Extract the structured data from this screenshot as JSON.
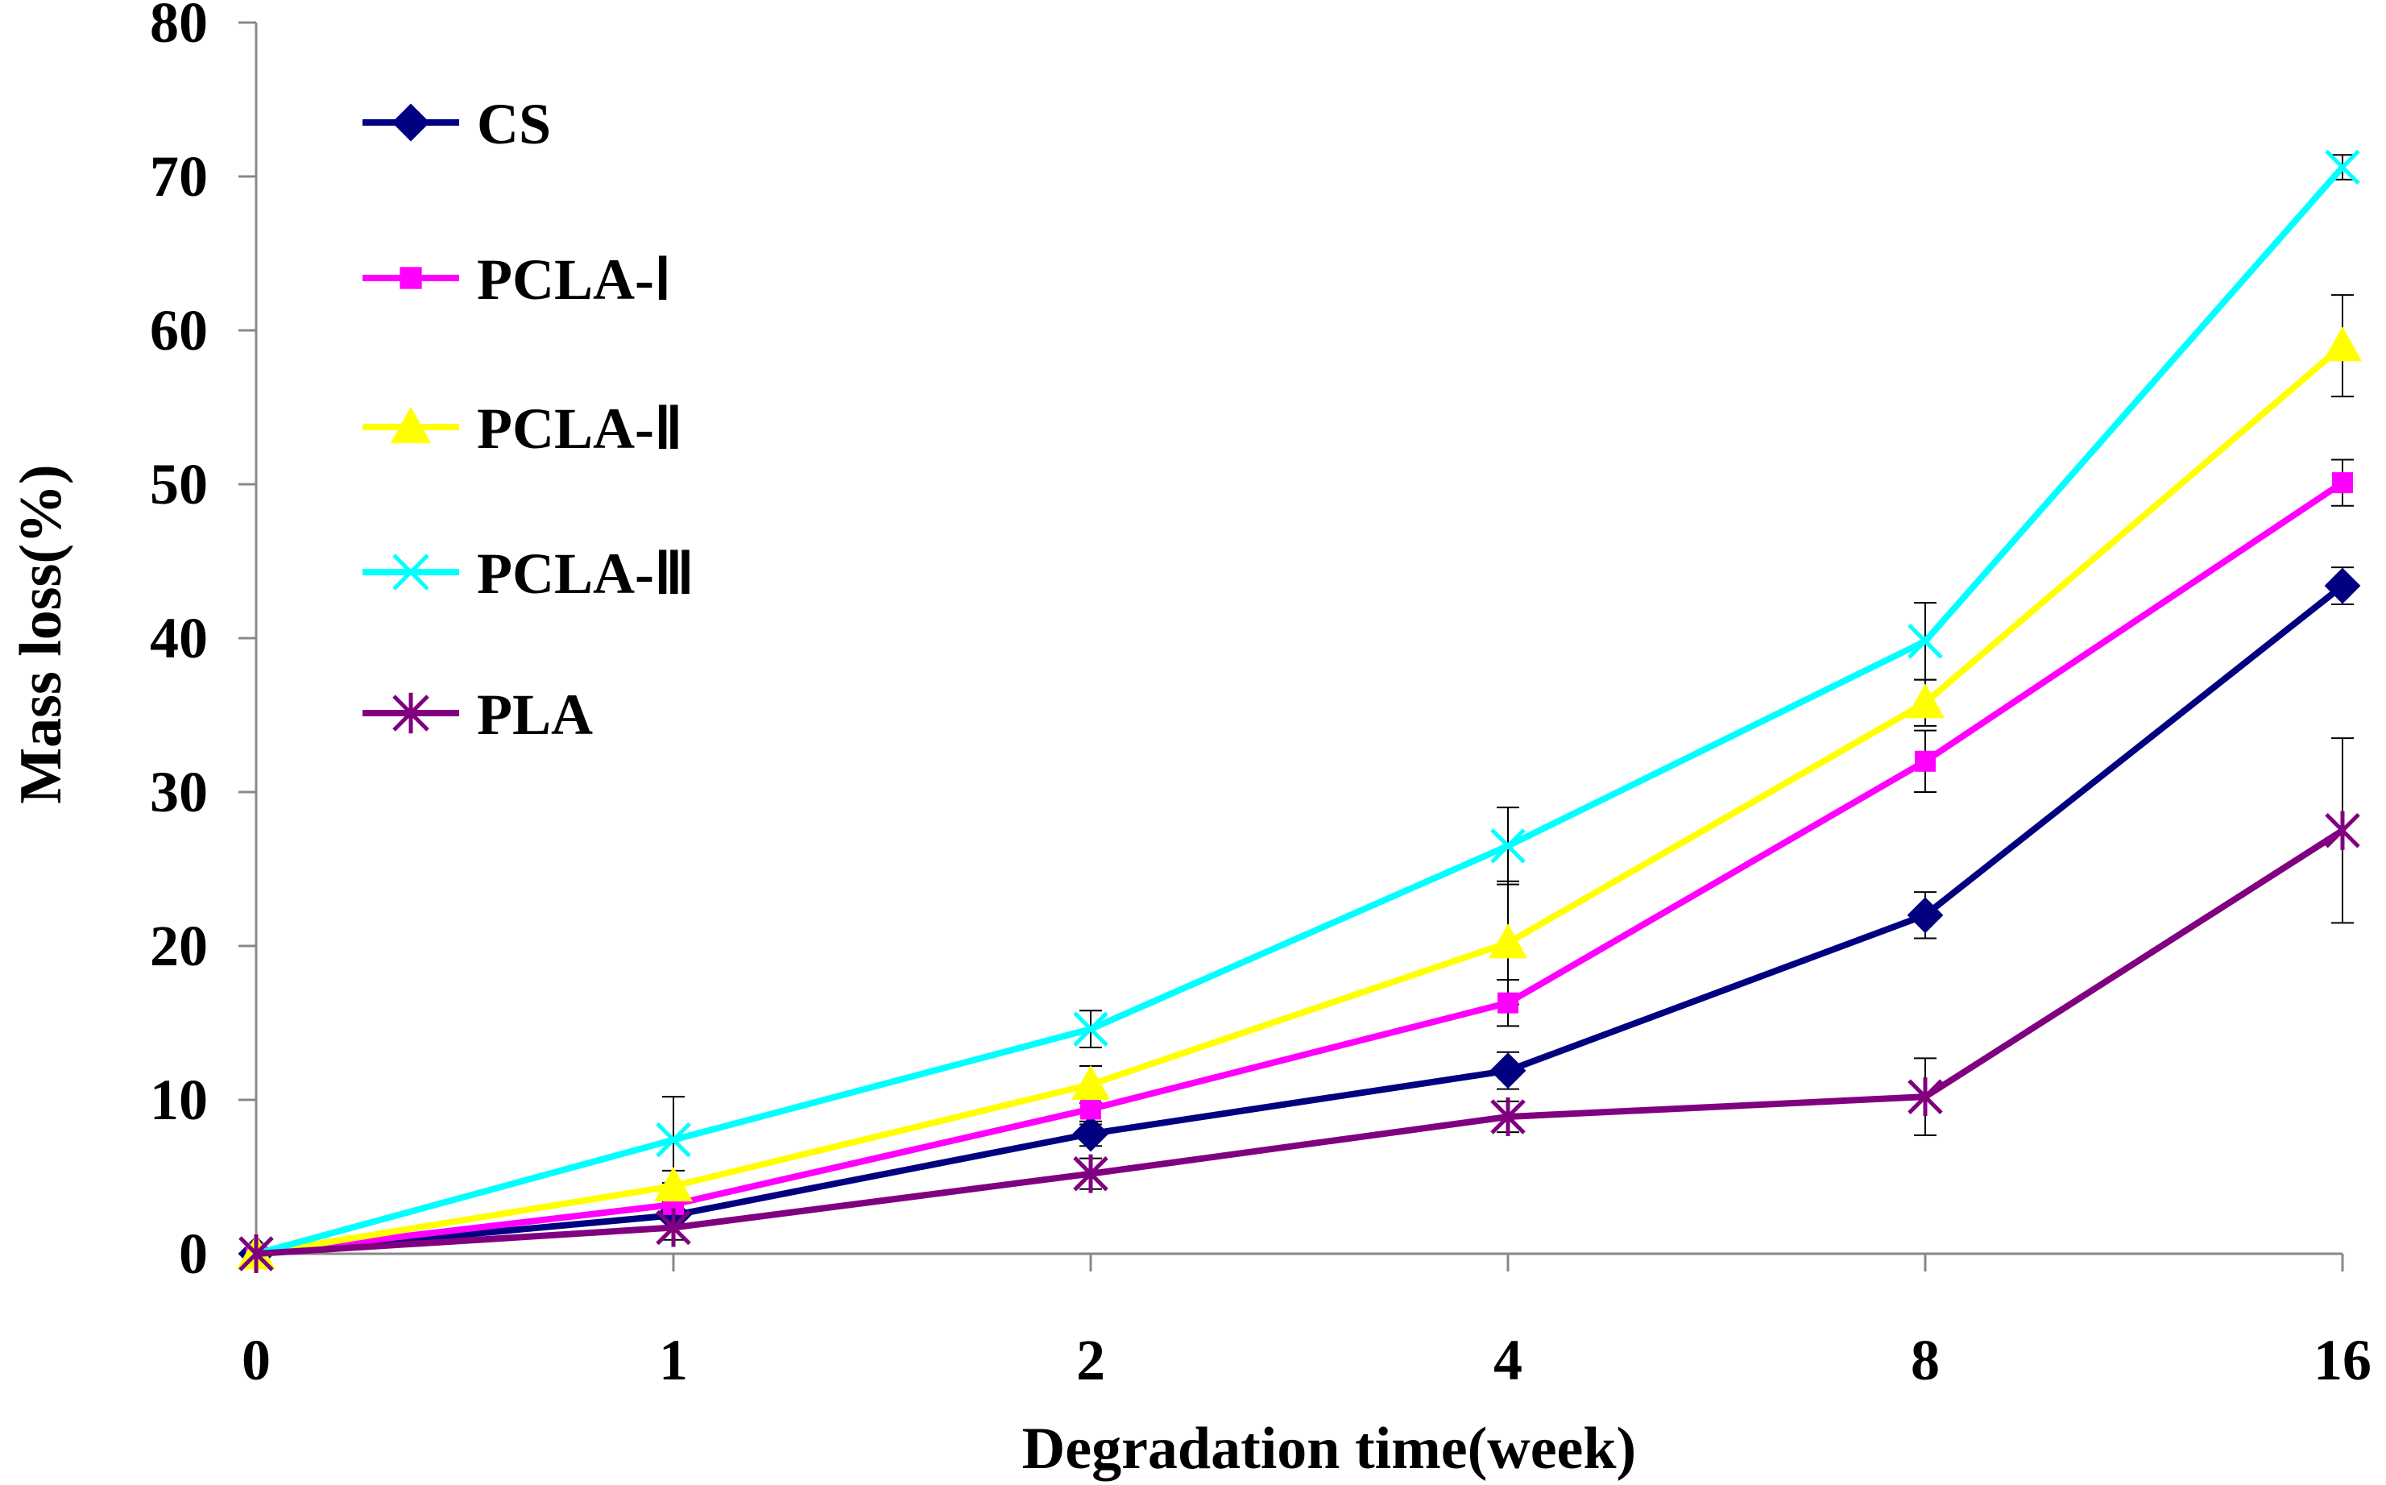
{
  "chart_data": {
    "type": "line",
    "title": "",
    "xlabel": "Degradation time(week)",
    "ylabel": "Mass loss(%)",
    "x": [
      "0",
      "1",
      "2",
      "4",
      "8",
      "16"
    ],
    "ylim": [
      0,
      80
    ],
    "yticks": [
      "0",
      "10",
      "20",
      "30",
      "40",
      "50",
      "60",
      "70",
      "80"
    ],
    "grid": false,
    "legend_position": "top-left",
    "series": [
      {
        "name": "CS",
        "color": "#000080",
        "marker": "diamond",
        "values": [
          0,
          2.5,
          7.8,
          11.9,
          22.0,
          43.4
        ],
        "errors": [
          0,
          0.8,
          0.8,
          1.2,
          1.5,
          1.2
        ]
      },
      {
        "name": "PCLA-Ⅰ",
        "color": "#ff00ff",
        "marker": "square",
        "values": [
          0,
          3.2,
          9.4,
          16.3,
          32.0,
          50.1
        ],
        "errors": [
          0,
          0.8,
          1.0,
          1.5,
          2.0,
          1.5
        ]
      },
      {
        "name": "PCLA-Ⅱ",
        "color": "#ffff00",
        "marker": "triangle",
        "values": [
          0,
          4.4,
          11.0,
          20.2,
          35.8,
          59.0
        ],
        "errors": [
          0,
          1.0,
          1.2,
          4.0,
          1.5,
          3.3
        ]
      },
      {
        "name": "PCLA-Ⅲ",
        "color": "#00ffff",
        "marker": "x",
        "values": [
          0,
          7.4,
          14.6,
          26.5,
          39.8,
          70.6
        ],
        "errors": [
          0,
          2.8,
          1.2,
          2.5,
          2.5,
          0.8
        ]
      },
      {
        "name": "PLA",
        "color": "#800080",
        "marker": "star",
        "values": [
          0,
          1.7,
          5.2,
          8.9,
          10.2,
          27.5
        ],
        "errors": [
          0,
          0.8,
          1.0,
          1.0,
          2.5,
          6.0
        ]
      }
    ]
  }
}
